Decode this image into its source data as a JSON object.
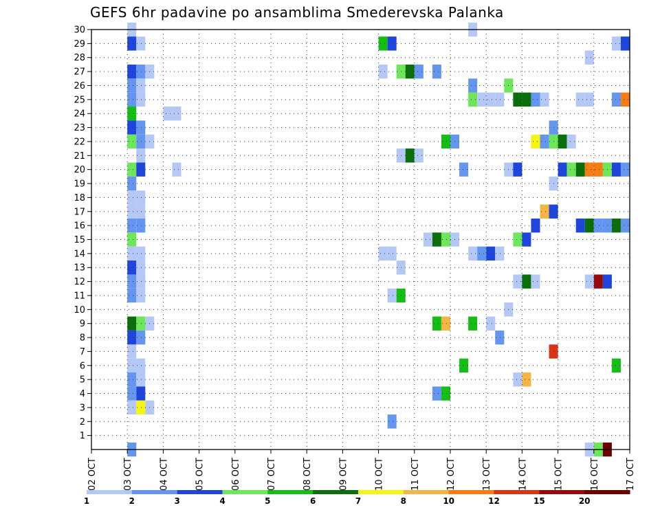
{
  "chart_data": {
    "type": "heatmap",
    "title": "GEFS 6hr padavine po ansamblima Smederevska Palanka",
    "xlabel": "",
    "ylabel": "",
    "x_ticks": [
      "02 OCT",
      "03 OCT",
      "04 OCT",
      "05 OCT",
      "06 OCT",
      "07 OCT",
      "08 OCT",
      "09 OCT",
      "10 OCT",
      "11 OCT",
      "12 OCT",
      "13 OCT",
      "14 OCT",
      "15 OCT",
      "16 OCT",
      "17 OCT"
    ],
    "x_range": [
      0,
      15
    ],
    "y_ticks": [
      1,
      2,
      3,
      4,
      5,
      6,
      7,
      8,
      9,
      10,
      11,
      12,
      13,
      14,
      15,
      16,
      17,
      18,
      19,
      20,
      21,
      22,
      23,
      24,
      25,
      26,
      27,
      28,
      29,
      30
    ],
    "y_range": [
      0,
      30
    ],
    "grid": true,
    "colorbar_labels": [
      "1",
      "2",
      "3",
      "4",
      "5",
      "6",
      "7",
      "8",
      "10",
      "12",
      "15",
      "20"
    ],
    "colors": [
      "#b4c8f8",
      "#6496f0",
      "#1e46dc",
      "#6ee65a",
      "#14be14",
      "#0a6e0a",
      "#f5f514",
      "#f5b446",
      "#f57d14",
      "#dc3214",
      "#960a0a",
      "#6e0000"
    ],
    "cells_note": "each cell = [day offset from 02 OCT 00Z, ensemble member, color class index]",
    "cells": [
      [
        1.0,
        30,
        0
      ],
      [
        1.0,
        29,
        2
      ],
      [
        1.25,
        29,
        0
      ],
      [
        1.0,
        27,
        2
      ],
      [
        1.25,
        27,
        1
      ],
      [
        1.5,
        27,
        0
      ],
      [
        1.0,
        26,
        1
      ],
      [
        1.25,
        26,
        0
      ],
      [
        1.0,
        25,
        1
      ],
      [
        1.25,
        25,
        0
      ],
      [
        1.0,
        24,
        4
      ],
      [
        1.0,
        23,
        2
      ],
      [
        1.25,
        23,
        1
      ],
      [
        1.0,
        22,
        3
      ],
      [
        1.25,
        22,
        1
      ],
      [
        1.5,
        22,
        0
      ],
      [
        1.25,
        21,
        0
      ],
      [
        1.0,
        20,
        3
      ],
      [
        1.25,
        20,
        2
      ],
      [
        1.0,
        19,
        1
      ],
      [
        1.0,
        18,
        0
      ],
      [
        1.25,
        18,
        0
      ],
      [
        1.0,
        17,
        0
      ],
      [
        1.25,
        17,
        0
      ],
      [
        1.0,
        16,
        1
      ],
      [
        1.25,
        16,
        1
      ],
      [
        1.0,
        15,
        3
      ],
      [
        1.0,
        14,
        0
      ],
      [
        1.25,
        14,
        0
      ],
      [
        1.0,
        13,
        2
      ],
      [
        1.25,
        13,
        0
      ],
      [
        1.0,
        12,
        1
      ],
      [
        1.25,
        12,
        0
      ],
      [
        1.0,
        11,
        1
      ],
      [
        1.25,
        11,
        0
      ],
      [
        1.0,
        9,
        5
      ],
      [
        1.25,
        9,
        3
      ],
      [
        1.5,
        9,
        0
      ],
      [
        1.0,
        8,
        2
      ],
      [
        1.25,
        8,
        1
      ],
      [
        1.0,
        7,
        0
      ],
      [
        1.0,
        6,
        0
      ],
      [
        1.25,
        6,
        0
      ],
      [
        1.0,
        5,
        1
      ],
      [
        1.25,
        5,
        0
      ],
      [
        1.0,
        4,
        1
      ],
      [
        1.25,
        4,
        2
      ],
      [
        1.0,
        3,
        0
      ],
      [
        1.25,
        3,
        6
      ],
      [
        1.5,
        3,
        0
      ],
      [
        1.0,
        0,
        1
      ],
      [
        2.0,
        24,
        0
      ],
      [
        2.25,
        24,
        0
      ],
      [
        2.25,
        20,
        0
      ],
      [
        8.0,
        29,
        4
      ],
      [
        8.25,
        29,
        2
      ],
      [
        8.0,
        27,
        0
      ],
      [
        8.5,
        27,
        3
      ],
      [
        8.75,
        27,
        5
      ],
      [
        9.0,
        27,
        1
      ],
      [
        9.5,
        27,
        1
      ],
      [
        8.5,
        21,
        0
      ],
      [
        8.75,
        21,
        5
      ],
      [
        9.0,
        21,
        0
      ],
      [
        9.25,
        15,
        0
      ],
      [
        9.5,
        15,
        5
      ],
      [
        9.75,
        15,
        3
      ],
      [
        10.0,
        15,
        0
      ],
      [
        8.0,
        14,
        0
      ],
      [
        8.25,
        14,
        0
      ],
      [
        8.5,
        13,
        0
      ],
      [
        8.25,
        11,
        0
      ],
      [
        8.5,
        11,
        4
      ],
      [
        9.5,
        9,
        4
      ],
      [
        9.75,
        9,
        7
      ],
      [
        9.5,
        4,
        1
      ],
      [
        9.75,
        4,
        4
      ],
      [
        8.25,
        2,
        1
      ],
      [
        9.75,
        22,
        4
      ],
      [
        10.0,
        22,
        1
      ],
      [
        10.25,
        20,
        1
      ],
      [
        10.25,
        6,
        4
      ],
      [
        10.5,
        9,
        4
      ],
      [
        10.5,
        14,
        0
      ],
      [
        10.75,
        14,
        1
      ],
      [
        11.0,
        14,
        2
      ],
      [
        11.25,
        14,
        0
      ],
      [
        11.0,
        9,
        0
      ],
      [
        11.25,
        8,
        1
      ],
      [
        10.5,
        25,
        3
      ],
      [
        10.75,
        25,
        0
      ],
      [
        11.0,
        25,
        0
      ],
      [
        11.25,
        25,
        0
      ],
      [
        10.5,
        26,
        1
      ],
      [
        10.5,
        30,
        0
      ],
      [
        11.5,
        26,
        3
      ],
      [
        11.5,
        10,
        0
      ],
      [
        11.5,
        20,
        0
      ],
      [
        11.75,
        20,
        2
      ],
      [
        11.75,
        15,
        3
      ],
      [
        12.0,
        15,
        2
      ],
      [
        11.75,
        12,
        0
      ],
      [
        12.0,
        12,
        5
      ],
      [
        12.25,
        12,
        0
      ],
      [
        11.75,
        5,
        0
      ],
      [
        12.0,
        5,
        7
      ],
      [
        11.75,
        25,
        5
      ],
      [
        12.0,
        25,
        5
      ],
      [
        12.25,
        25,
        1
      ],
      [
        12.5,
        25,
        0
      ],
      [
        12.25,
        16,
        2
      ],
      [
        12.5,
        17,
        7
      ],
      [
        12.75,
        17,
        2
      ],
      [
        12.25,
        22,
        6
      ],
      [
        12.5,
        22,
        1
      ],
      [
        12.75,
        22,
        3
      ],
      [
        13.0,
        22,
        5
      ],
      [
        13.25,
        22,
        0
      ],
      [
        12.75,
        23,
        1
      ],
      [
        13.0,
        20,
        2
      ],
      [
        13.25,
        20,
        3
      ],
      [
        13.5,
        20,
        5
      ],
      [
        13.75,
        20,
        8
      ],
      [
        14.0,
        20,
        8
      ],
      [
        14.25,
        20,
        3
      ],
      [
        14.5,
        20,
        2
      ],
      [
        14.75,
        20,
        1
      ],
      [
        12.75,
        19,
        0
      ],
      [
        13.5,
        16,
        2
      ],
      [
        13.75,
        16,
        5
      ],
      [
        14.0,
        16,
        1
      ],
      [
        14.25,
        16,
        1
      ],
      [
        14.5,
        16,
        5
      ],
      [
        14.75,
        16,
        1
      ],
      [
        13.5,
        25,
        0
      ],
      [
        13.75,
        25,
        0
      ],
      [
        14.5,
        25,
        1
      ],
      [
        14.75,
        25,
        8
      ],
      [
        13.75,
        28,
        0
      ],
      [
        14.5,
        29,
        0
      ],
      [
        14.75,
        29,
        2
      ],
      [
        13.75,
        12,
        0
      ],
      [
        14.0,
        12,
        10
      ],
      [
        14.25,
        12,
        2
      ],
      [
        12.75,
        7,
        9
      ],
      [
        14.5,
        6,
        4
      ],
      [
        13.75,
        0,
        0
      ],
      [
        14.0,
        0,
        3
      ],
      [
        14.25,
        0,
        11
      ]
    ]
  }
}
